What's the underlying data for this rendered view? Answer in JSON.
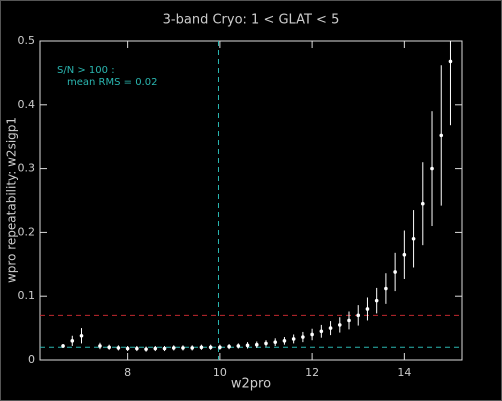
{
  "chart_data": {
    "type": "errorbar-scatter",
    "title": "3-band Cryo:  1 < GLAT < 5",
    "x_label": "w2pro",
    "y_label": "wpro repeatability: w2sigp1",
    "annotation": [
      "S/N > 100 :",
      "mean RMS =  0.02"
    ],
    "annotation_color": "#2ab6b0",
    "x": [
      6.6,
      6.8,
      7.0,
      7.4,
      7.6,
      7.8,
      8.0,
      8.2,
      8.4,
      8.6,
      8.8,
      9.0,
      9.2,
      9.4,
      9.6,
      9.8,
      10.0,
      10.2,
      10.4,
      10.6,
      10.8,
      11.0,
      11.2,
      11.4,
      11.6,
      11.8,
      12.0,
      12.2,
      12.4,
      12.6,
      12.8,
      13.0,
      13.2,
      13.4,
      13.6,
      13.8,
      14.0,
      14.2,
      14.4,
      14.6,
      14.8,
      15.0
    ],
    "values": [
      0.022,
      0.03,
      0.038,
      0.022,
      0.02,
      0.019,
      0.018,
      0.018,
      0.017,
      0.018,
      0.018,
      0.019,
      0.019,
      0.019,
      0.02,
      0.02,
      0.02,
      0.021,
      0.022,
      0.023,
      0.024,
      0.026,
      0.028,
      0.03,
      0.033,
      0.036,
      0.04,
      0.045,
      0.05,
      0.055,
      0.062,
      0.07,
      0.08,
      0.093,
      0.112,
      0.138,
      0.165,
      0.19,
      0.245,
      0.3,
      0.352,
      0.468
    ],
    "errors": [
      0.003,
      0.008,
      0.012,
      0.005,
      0.004,
      0.004,
      0.004,
      0.004,
      0.004,
      0.004,
      0.004,
      0.004,
      0.004,
      0.004,
      0.004,
      0.004,
      0.004,
      0.004,
      0.004,
      0.005,
      0.005,
      0.005,
      0.006,
      0.006,
      0.007,
      0.008,
      0.009,
      0.01,
      0.011,
      0.012,
      0.014,
      0.016,
      0.018,
      0.02,
      0.024,
      0.03,
      0.038,
      0.045,
      0.065,
      0.09,
      0.11,
      0.1
    ],
    "color": "#ffffff",
    "hlines": [
      {
        "value": 0.07,
        "color": "#c0282e"
      },
      {
        "value": 0.02,
        "color": "#2ab6b0"
      }
    ],
    "vlines": [
      {
        "value": 9.97,
        "color": "#2ab6b0"
      }
    ],
    "xlim": [
      6.1,
      15.25
    ],
    "xticks": [
      8,
      10,
      12,
      14
    ],
    "ylim": [
      0,
      0.5
    ],
    "yticks": [
      0,
      0.1,
      0.2,
      0.3,
      0.4,
      0.5
    ]
  }
}
